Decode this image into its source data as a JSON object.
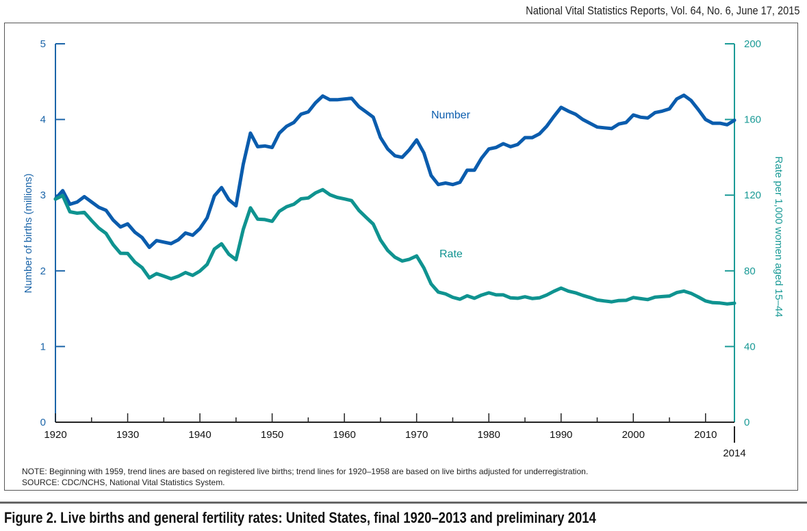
{
  "header": {
    "text": "National Vital Statistics Reports, Vol. 64, No. 6, June 17, 2015"
  },
  "notes": {
    "note": "NOTE: Beginning with 1959, trend lines are based on registered live births; trend lines for 1920–1958 are based on live births adjusted for underregistration.",
    "source": "SOURCE: CDC/NCHS, National Vital Statistics System."
  },
  "figure_title": "Figure 2. Live births and general fertility rates: United States, final 1920–2013 and preliminary 2014",
  "colors": {
    "number": "#0a5cad",
    "rate": "#0f9390",
    "left_axis": "#1a64a8",
    "right_axis": "#1a9a96",
    "x_axis": "#222222"
  },
  "chart_data": {
    "type": "line",
    "title": "Live births and general fertility rates: United States, final 1920–2013 and preliminary 2014",
    "xlabel": "",
    "ylabel": "Number of births (millions)",
    "y2label": "Rate per 1,000 women aged 15–44",
    "xlim": [
      1920,
      2014
    ],
    "ylim": [
      0,
      5
    ],
    "y2lim": [
      0,
      200
    ],
    "grid": false,
    "x_ticks": [
      "1920",
      "1930",
      "1940",
      "1950",
      "1960",
      "1970",
      "1980",
      "1990",
      "2000",
      "2010"
    ],
    "x_ticks_major": [
      1920,
      1930,
      1940,
      1950,
      1960,
      1970,
      1980,
      1990,
      2000,
      2010
    ],
    "x_ticks_minor": [
      1925,
      1935,
      1945,
      1955,
      1965,
      1975,
      1985,
      1995,
      2005
    ],
    "x_end_label": "2014",
    "y_ticks": [
      "0",
      "1",
      "2",
      "3",
      "4",
      "5"
    ],
    "y2_ticks": [
      "0",
      "40",
      "80",
      "120",
      "160",
      "200"
    ],
    "x_start": 1920,
    "series": [
      {
        "name": "Number",
        "axis": "left",
        "label_position": "above line near 1980",
        "values": [
          2.95,
          3.06,
          2.88,
          2.91,
          2.98,
          2.91,
          2.84,
          2.8,
          2.67,
          2.58,
          2.62,
          2.51,
          2.44,
          2.31,
          2.4,
          2.38,
          2.36,
          2.41,
          2.5,
          2.47,
          2.56,
          2.7,
          2.99,
          3.1,
          2.94,
          2.86,
          3.41,
          3.82,
          3.64,
          3.65,
          3.63,
          3.82,
          3.91,
          3.96,
          4.07,
          4.1,
          4.22,
          4.31,
          4.26,
          4.26,
          4.27,
          4.28,
          4.17,
          4.1,
          4.03,
          3.76,
          3.61,
          3.52,
          3.5,
          3.6,
          3.73,
          3.56,
          3.26,
          3.14,
          3.16,
          3.14,
          3.17,
          3.33,
          3.33,
          3.49,
          3.61,
          3.63,
          3.68,
          3.64,
          3.67,
          3.76,
          3.76,
          3.81,
          3.91,
          4.04,
          4.16,
          4.11,
          4.07,
          4.0,
          3.95,
          3.9,
          3.89,
          3.88,
          3.94,
          3.96,
          4.06,
          4.03,
          4.02,
          4.09,
          4.11,
          4.14,
          4.27,
          4.32,
          4.25,
          4.13,
          4.0,
          3.95,
          3.95,
          3.93,
          3.99
        ]
      },
      {
        "name": "Rate",
        "axis": "right",
        "label_position": "above line near 1975",
        "values": [
          117.9,
          119.8,
          111.2,
          110.5,
          110.9,
          106.6,
          102.6,
          99.8,
          93.8,
          89.3,
          89.2,
          84.6,
          81.7,
          76.3,
          78.5,
          77.2,
          75.8,
          77.1,
          79.1,
          77.6,
          79.9,
          83.4,
          91.5,
          94.3,
          88.8,
          85.9,
          101.9,
          113.3,
          107.3,
          107.1,
          106.2,
          111.5,
          113.9,
          115.2,
          118.1,
          118.5,
          121.2,
          122.9,
          120.2,
          118.8,
          118.0,
          117.1,
          112.0,
          108.3,
          104.7,
          96.3,
          90.8,
          87.2,
          85.2,
          86.1,
          87.9,
          81.6,
          73.1,
          68.8,
          67.8,
          66.0,
          65.0,
          66.8,
          65.5,
          67.2,
          68.4,
          67.3,
          67.3,
          65.7,
          65.5,
          66.3,
          65.4,
          65.7,
          67.2,
          69.2,
          70.9,
          69.3,
          68.4,
          67.0,
          65.9,
          64.6,
          64.1,
          63.6,
          64.3,
          64.4,
          65.9,
          65.3,
          64.8,
          66.1,
          66.4,
          66.7,
          68.5,
          69.3,
          68.1,
          66.2,
          64.1,
          63.2,
          63.0,
          62.5,
          62.9
        ]
      }
    ]
  }
}
